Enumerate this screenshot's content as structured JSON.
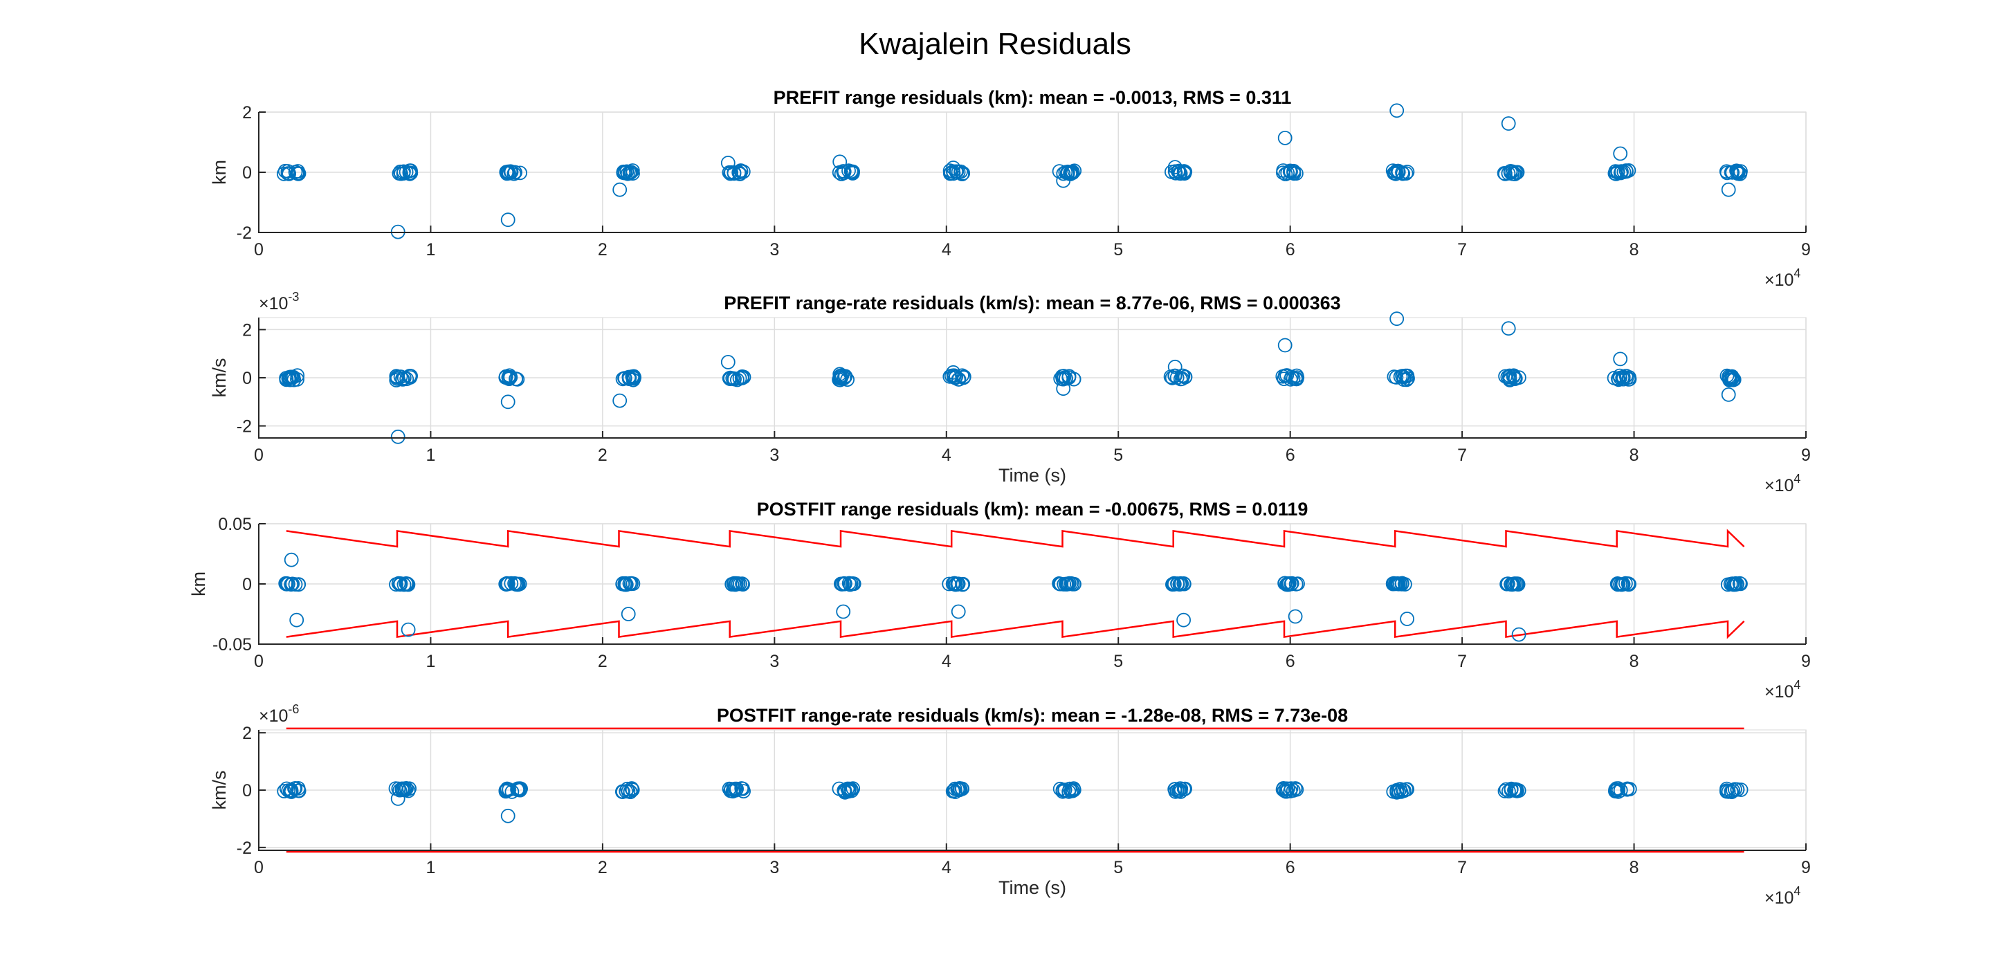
{
  "suptitle": "Kwajalein Residuals",
  "colors": {
    "marker": "#0072BD",
    "bound": "#FF0000",
    "axis": "#262626",
    "grid": "#DEDEDE"
  },
  "chart_data": [
    {
      "type": "scatter",
      "title": "PREFIT range residuals (km): mean = -0.0013, RMS = 0.311",
      "xlabel": "",
      "ylabel": "km",
      "xlim": [
        0,
        90000
      ],
      "ylim": [
        -2,
        2
      ],
      "xticks": [
        0,
        10000,
        20000,
        30000,
        40000,
        50000,
        60000,
        70000,
        80000,
        90000
      ],
      "xtick_labels": [
        "0",
        "1",
        "2",
        "3",
        "4",
        "5",
        "6",
        "7",
        "8",
        "9"
      ],
      "x_exponent": "×10",
      "x_exponent_power": "4",
      "yticks": [
        -2,
        0,
        2
      ],
      "ytick_labels": [
        "-2",
        "0",
        "2"
      ],
      "y_exponent": "",
      "y_exponent_power": "",
      "grid": true,
      "pass_centers": [
        1900,
        8400,
        14800,
        21400,
        27800,
        34200,
        40600,
        47000,
        53500,
        60000,
        66400,
        72900,
        79300,
        85800
      ],
      "cluster_spread": 0.03,
      "outliers": [
        {
          "x": 8100,
          "y": -1.98
        },
        {
          "x": 14500,
          "y": -1.58
        },
        {
          "x": 21000,
          "y": -0.58
        },
        {
          "x": 27300,
          "y": 0.31
        },
        {
          "x": 33800,
          "y": 0.35
        },
        {
          "x": 40400,
          "y": 0.15
        },
        {
          "x": 46800,
          "y": -0.28
        },
        {
          "x": 53300,
          "y": 0.17
        },
        {
          "x": 59700,
          "y": 1.14
        },
        {
          "x": 66200,
          "y": 2.05
        },
        {
          "x": 72700,
          "y": 1.62
        },
        {
          "x": 79200,
          "y": 0.62
        },
        {
          "x": 85500,
          "y": -0.58
        }
      ],
      "bounds": null
    },
    {
      "type": "scatter",
      "title": "PREFIT range-rate residuals (km/s): mean = 8.77e-06, RMS = 0.000363",
      "xlabel": "Time (s)",
      "ylabel": "km/s",
      "xlim": [
        0,
        90000
      ],
      "ylim": [
        -2.5,
        2.5
      ],
      "xticks": [
        0,
        10000,
        20000,
        30000,
        40000,
        50000,
        60000,
        70000,
        80000,
        90000
      ],
      "xtick_labels": [
        "0",
        "1",
        "2",
        "3",
        "4",
        "5",
        "6",
        "7",
        "8",
        "9"
      ],
      "x_exponent": "×10",
      "x_exponent_power": "4",
      "yticks": [
        -2,
        0,
        2
      ],
      "ytick_labels": [
        "-2",
        "0",
        "2"
      ],
      "y_exponent": "×10",
      "y_exponent_power": "-3",
      "grid": true,
      "pass_centers": [
        1900,
        8400,
        14800,
        21400,
        27800,
        34200,
        40600,
        47000,
        53500,
        60000,
        66400,
        72900,
        79300,
        85800
      ],
      "cluster_spread": 0.04,
      "outliers": [
        {
          "x": 1600,
          "y": -0.08
        },
        {
          "x": 8100,
          "y": -2.45
        },
        {
          "x": 8000,
          "y": -0.1
        },
        {
          "x": 14500,
          "y": -1.0
        },
        {
          "x": 21000,
          "y": -0.95
        },
        {
          "x": 27300,
          "y": 0.65
        },
        {
          "x": 33800,
          "y": 0.15
        },
        {
          "x": 40400,
          "y": 0.22
        },
        {
          "x": 46800,
          "y": -0.45
        },
        {
          "x": 53300,
          "y": 0.45
        },
        {
          "x": 59700,
          "y": 1.35
        },
        {
          "x": 59800,
          "y": 0.1
        },
        {
          "x": 66200,
          "y": 2.45
        },
        {
          "x": 72700,
          "y": 2.05
        },
        {
          "x": 79200,
          "y": 0.78
        },
        {
          "x": 79100,
          "y": -0.08
        },
        {
          "x": 85500,
          "y": -0.7
        }
      ],
      "bounds": null
    },
    {
      "type": "scatter",
      "title": "POSTFIT range residuals (km): mean = -0.00675, RMS = 0.0119",
      "xlabel": "",
      "ylabel": "km",
      "xlim": [
        0,
        90000
      ],
      "ylim": [
        -0.05,
        0.05
      ],
      "xticks": [
        0,
        10000,
        20000,
        30000,
        40000,
        50000,
        60000,
        70000,
        80000,
        90000
      ],
      "xtick_labels": [
        "0",
        "1",
        "2",
        "3",
        "4",
        "5",
        "6",
        "7",
        "8",
        "9"
      ],
      "x_exponent": "×10",
      "x_exponent_power": "4",
      "yticks": [
        -0.05,
        0,
        0.05
      ],
      "ytick_labels": [
        "-0.05",
        "0",
        "0.05"
      ],
      "y_exponent": "",
      "y_exponent_power": "",
      "grid": true,
      "pass_centers": [
        1900,
        8400,
        14800,
        21400,
        27800,
        34200,
        40600,
        47000,
        53500,
        60000,
        66400,
        72900,
        79300,
        85800
      ],
      "cluster_spread": 0.012,
      "outliers": [
        {
          "x": 1900,
          "y": 0.02
        },
        {
          "x": 2200,
          "y": -0.03
        },
        {
          "x": 8700,
          "y": -0.038
        },
        {
          "x": 21500,
          "y": -0.025
        },
        {
          "x": 34000,
          "y": -0.023
        },
        {
          "x": 40700,
          "y": -0.023
        },
        {
          "x": 53800,
          "y": -0.03
        },
        {
          "x": 60300,
          "y": -0.027
        },
        {
          "x": 66800,
          "y": -0.029
        },
        {
          "x": 73300,
          "y": -0.042
        }
      ],
      "bounds": {
        "type": "sawtooth",
        "x_start": 1600,
        "x_end": 86400,
        "period": 6450,
        "upper_low": 0.031,
        "upper_high": 0.044,
        "lower_high": -0.031,
        "lower_low": -0.044
      }
    },
    {
      "type": "scatter",
      "title": "POSTFIT range-rate residuals (km/s): mean = -1.28e-08, RMS = 7.73e-08",
      "xlabel": "Time (s)",
      "ylabel": "km/s",
      "xlim": [
        0,
        90000
      ],
      "ylim": [
        -2.1,
        2.1
      ],
      "xticks": [
        0,
        10000,
        20000,
        30000,
        40000,
        50000,
        60000,
        70000,
        80000,
        90000
      ],
      "xtick_labels": [
        "0",
        "1",
        "2",
        "3",
        "4",
        "5",
        "6",
        "7",
        "8",
        "9"
      ],
      "x_exponent": "×10",
      "x_exponent_power": "4",
      "yticks": [
        -2,
        0,
        2
      ],
      "ytick_labels": [
        "-2",
        "0",
        "2"
      ],
      "y_exponent": "×10",
      "y_exponent_power": "-6",
      "grid": true,
      "pass_centers": [
        1900,
        8400,
        14800,
        21400,
        27800,
        34200,
        40600,
        47000,
        53500,
        60000,
        66400,
        72900,
        79300,
        85800
      ],
      "cluster_spread": 0.03,
      "outliers": [
        {
          "x": 8100,
          "y": -0.3
        },
        {
          "x": 14500,
          "y": -0.9
        },
        {
          "x": 34100,
          "y": -0.08
        },
        {
          "x": 66200,
          "y": -0.08
        }
      ],
      "bounds": {
        "type": "constant",
        "x_start": 1600,
        "x_end": 86400,
        "upper": 2.15,
        "lower": -2.15
      }
    }
  ]
}
